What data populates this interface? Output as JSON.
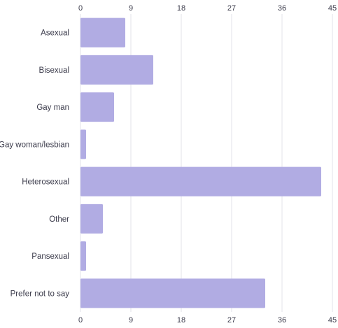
{
  "chart_data": {
    "type": "bar",
    "orientation": "horizontal",
    "categories": [
      "Asexual",
      "Bisexual",
      "Gay man",
      "Gay woman/lesbian",
      "Heterosexual",
      "Other",
      "Pansexual",
      "Prefer not to say"
    ],
    "values": [
      8,
      13,
      6,
      1,
      43,
      4,
      1,
      33
    ],
    "xlim": [
      0,
      45
    ],
    "xticks": [
      0,
      9,
      18,
      27,
      36,
      45
    ],
    "grid": true,
    "bar_color": "#b1ace3",
    "axis_labels_top_and_bottom": true
  }
}
